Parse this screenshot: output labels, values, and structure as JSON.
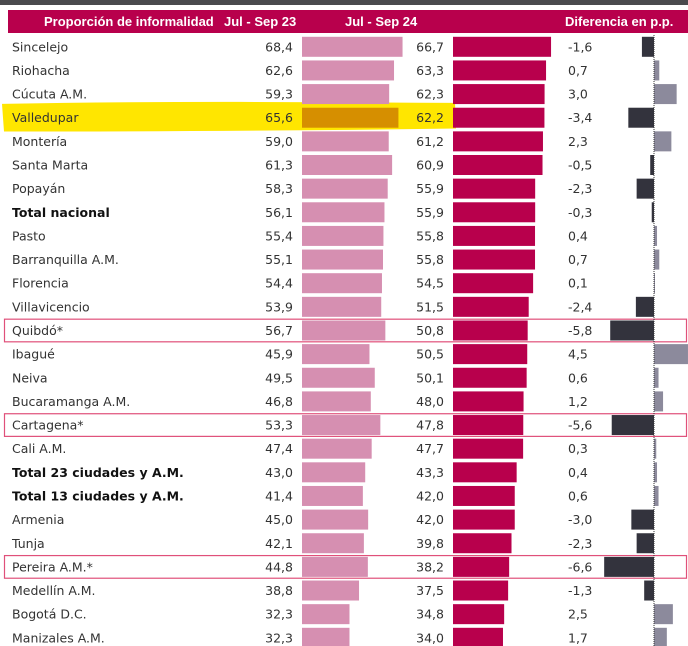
{
  "chart_data": {
    "type": "bar",
    "title": "Proporción de informalidad",
    "columns": [
      "Proporción de informalidad",
      "Jul - Sep 23",
      "Jul - Sep 24",
      "Diferencia en p.p."
    ],
    "categories": [
      "Sincelejo",
      "Riohacha",
      "Cúcuta A.M.",
      "Valledupar",
      "Montería",
      "Santa Marta",
      "Popayán",
      "Total nacional",
      "Pasto",
      "Barranquilla A.M.",
      "Florencia",
      "Villavicencio",
      "Quibdó*",
      "Ibagué",
      "Neiva",
      "Bucaramanga A.M.",
      "Cartagena*",
      "Cali A.M.",
      "Total 23 ciudades y A.M.",
      "Total 13 ciudades y A.M.",
      "Armenia",
      "Tunja",
      "Pereira A.M.*",
      "Medellín A.M.",
      "Bogotá D.C.",
      "Manizales A.M."
    ],
    "series": [
      {
        "name": "Jul - Sep 23",
        "color": "#d68fb1",
        "values": [
          68.4,
          62.6,
          59.3,
          65.6,
          59.0,
          61.3,
          58.3,
          56.1,
          55.4,
          55.1,
          54.4,
          53.9,
          56.7,
          45.9,
          49.5,
          46.8,
          53.3,
          47.4,
          43.0,
          41.4,
          45.0,
          42.1,
          44.8,
          38.8,
          32.3,
          32.3
        ]
      },
      {
        "name": "Jul - Sep 24",
        "color": "#b8004c",
        "values": [
          66.7,
          63.3,
          62.3,
          62.2,
          61.2,
          60.9,
          55.9,
          55.9,
          55.8,
          55.8,
          54.5,
          51.5,
          50.8,
          50.5,
          50.1,
          48.0,
          47.8,
          47.7,
          43.3,
          42.0,
          42.0,
          39.8,
          38.2,
          37.5,
          34.8,
          34.0
        ]
      },
      {
        "name": "Diferencia en p.p.",
        "color_negative": "#33333d",
        "color_positive": "#8c8a9c",
        "values": [
          -1.6,
          0.7,
          3.0,
          -3.4,
          2.3,
          -0.5,
          -2.3,
          -0.3,
          0.4,
          0.7,
          0.1,
          -2.4,
          -5.8,
          4.5,
          0.6,
          1.2,
          -5.6,
          0.3,
          0.4,
          0.6,
          -3.0,
          -2.3,
          -6.6,
          -1.3,
          2.5,
          1.7
        ]
      }
    ],
    "labels_23": [
      "68,4",
      "62,6",
      "59,3",
      "65,6",
      "59,0",
      "61,3",
      "58,3",
      "56,1",
      "55,4",
      "55,1",
      "54,4",
      "53,9",
      "56,7",
      "45,9",
      "49,5",
      "46,8",
      "53,3",
      "47,4",
      "43,0",
      "41,4",
      "45,0",
      "42,1",
      "44,8",
      "38,8",
      "32,3",
      "32,3"
    ],
    "labels_24": [
      "66,7",
      "63,3",
      "62,3",
      "62,2",
      "61,2",
      "60,9",
      "55,9",
      "55,9",
      "55,8",
      "55,8",
      "54,5",
      "51,5",
      "50,8",
      "50,5",
      "50,1",
      "48,0",
      "47,8",
      "47,7",
      "43,3",
      "42,0",
      "42,0",
      "39,8",
      "38,2",
      "37,5",
      "34,8",
      "34,0"
    ],
    "labels_diff": [
      "-1,6",
      "0,7",
      "3,0",
      "-3,4",
      "2,3",
      "-0,5",
      "-2,3",
      "-0,3",
      "0,4",
      "0,7",
      "0,1",
      "-2,4",
      "-5,8",
      "4,5",
      "0,6",
      "1,2",
      "-5,6",
      "0,3",
      "0,4",
      "0,6",
      "-3,0",
      "-2,3",
      "-6,6",
      "-1,3",
      "2,5",
      "1,7"
    ],
    "bold_rows": [
      "Total nacional",
      "Total 23 ciudades y A.M.",
      "Total 13 ciudades y A.M."
    ],
    "boxed_rows": [
      "Quibdó*",
      "Cartagena*",
      "Pereira A.M.*"
    ],
    "highlighted_row": "Valledupar",
    "highlight_bar_color": "#d68f00",
    "box_color": "#e0507a",
    "xlabel": "",
    "ylabel": ""
  },
  "header": {
    "col1": "Proporción de informalidad",
    "col2": "Jul - Sep 23",
    "col3": "Jul - Sep 24",
    "col4": "Diferencia en p.p."
  }
}
